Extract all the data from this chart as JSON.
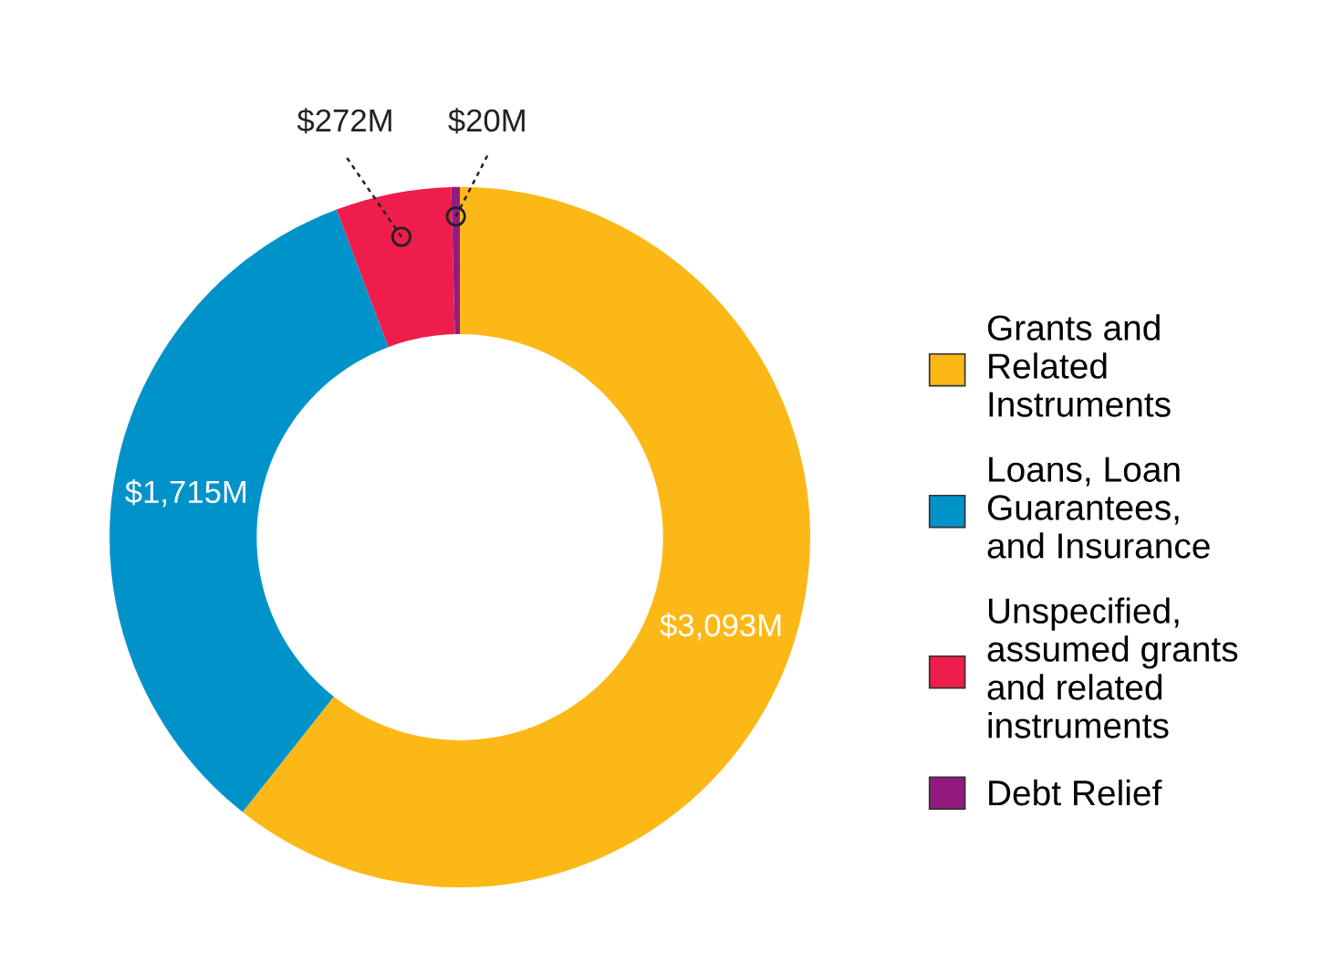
{
  "chart_data": {
    "type": "donut",
    "categories": [
      "Grants and\nRelated\nInstruments",
      "Loans, Loan\nGuarantees,\nand Insurance",
      "Unspecified,\nassumed grants\nand related\ninstruments",
      "Debt Relief"
    ],
    "values": [
      3093,
      1715,
      272,
      20
    ],
    "colors": [
      "#fbb817",
      "#0093c9",
      "#ee1d4c",
      "#931b80"
    ],
    "value_labels": [
      "$3,093M",
      "$1,715M",
      "$272M",
      "$20M"
    ],
    "legend": "right"
  }
}
